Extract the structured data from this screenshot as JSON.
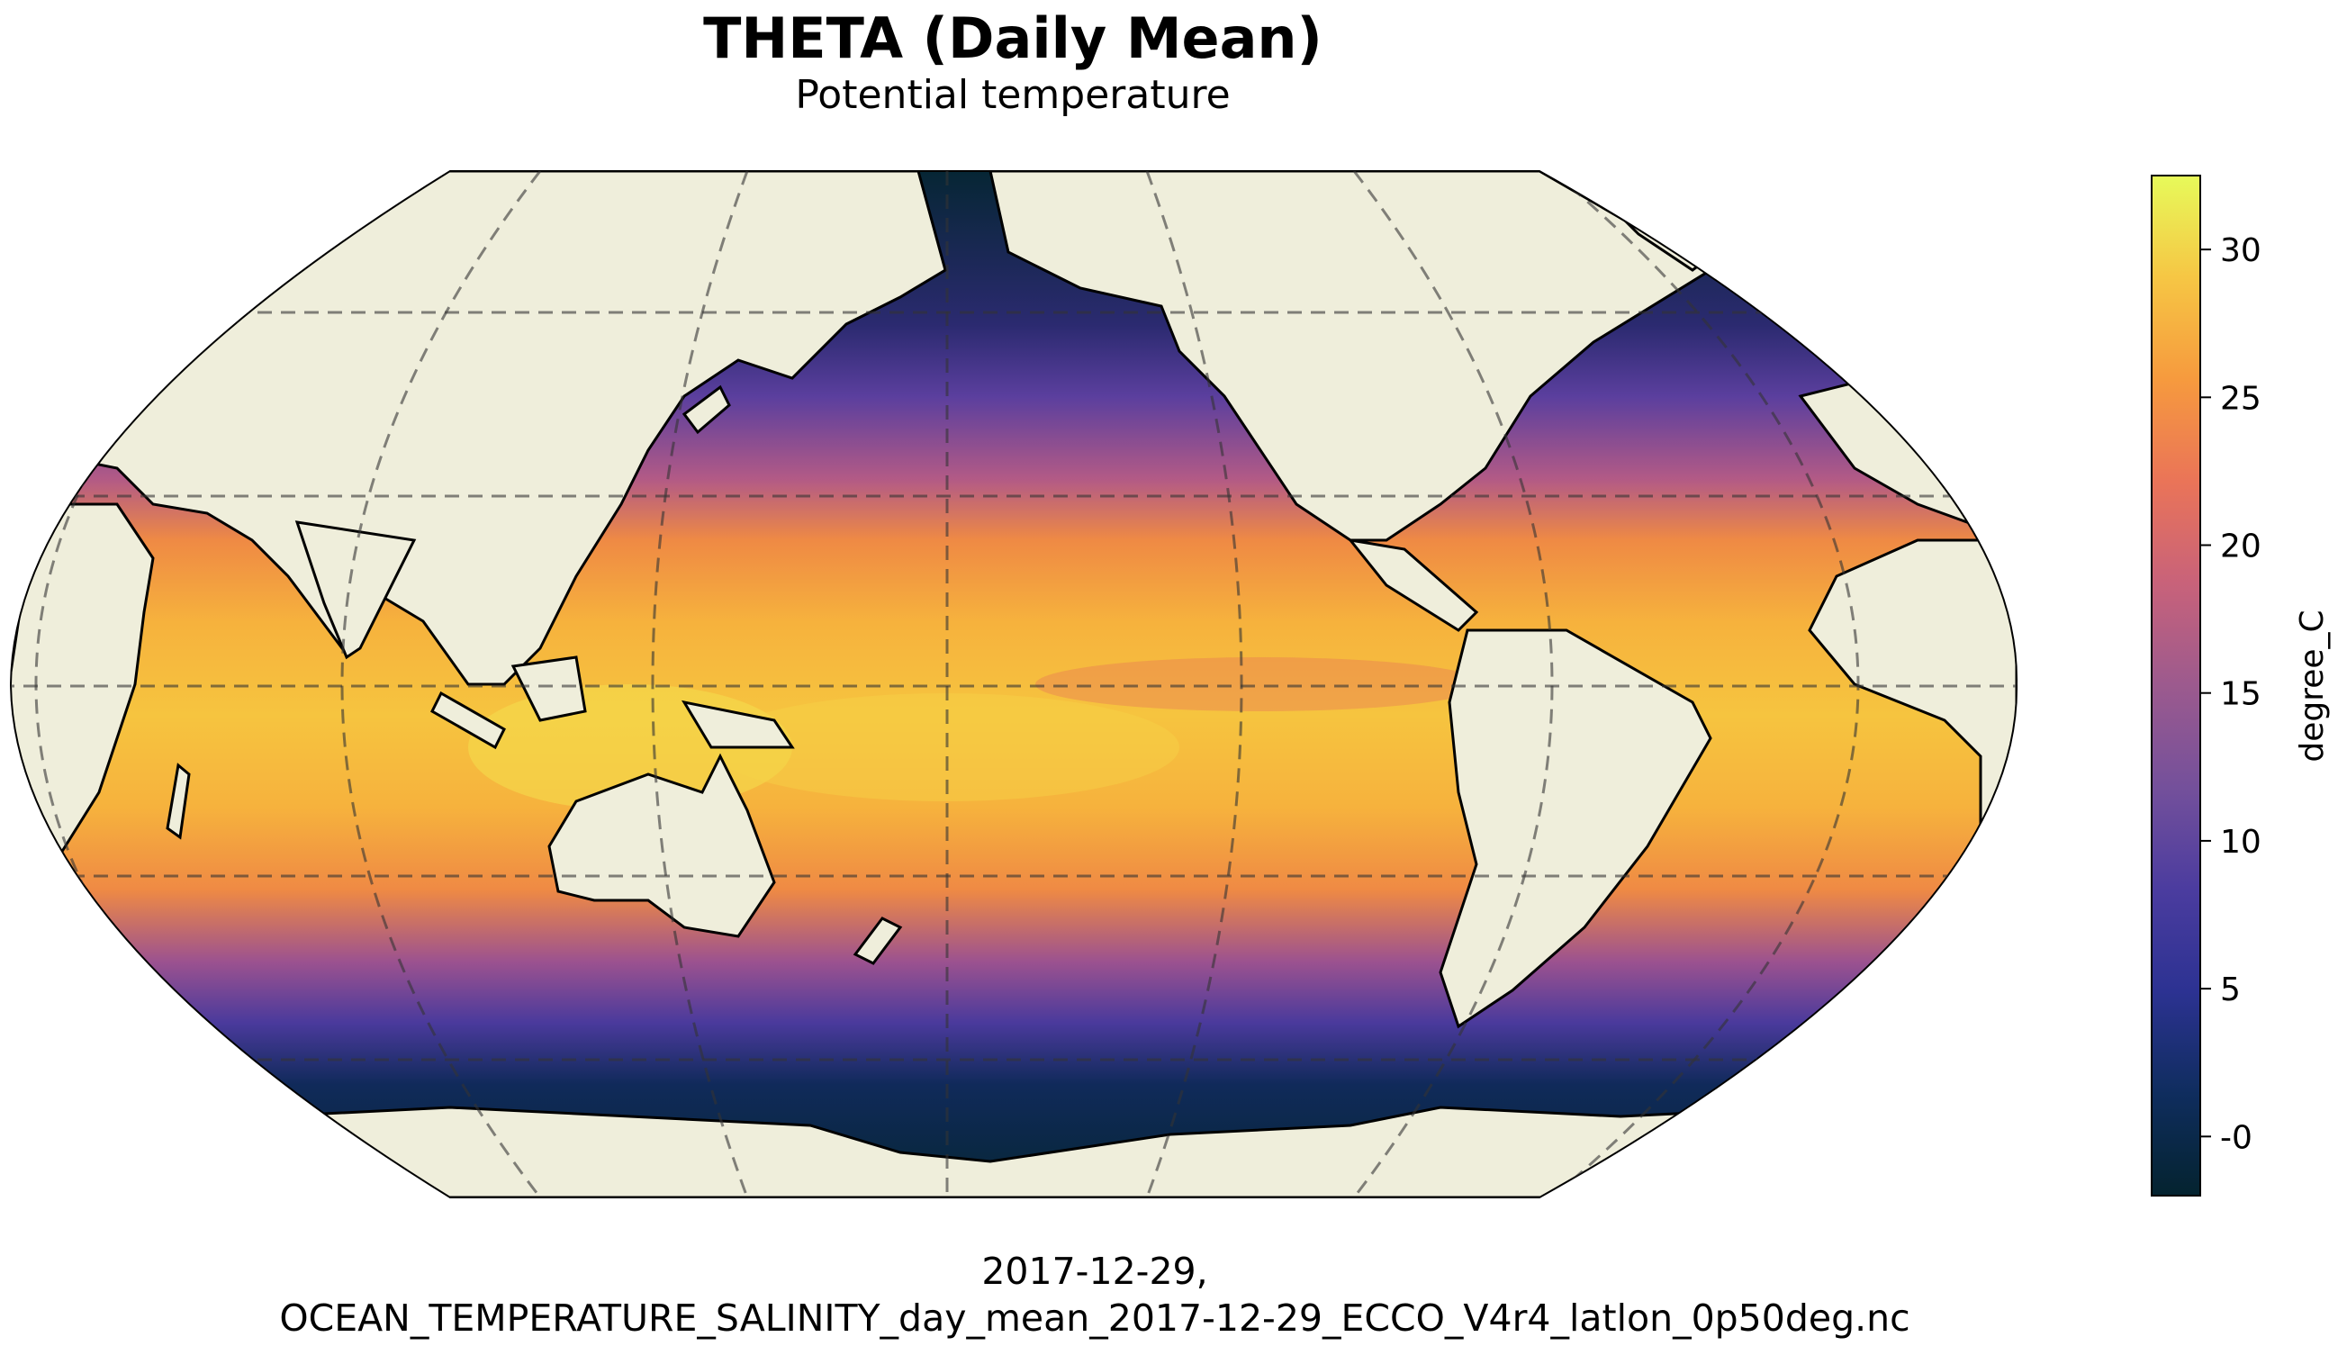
{
  "title": "THETA (Daily Mean)",
  "subtitle": "Potential temperature",
  "footer": {
    "line1": "2017-12-29,",
    "line2": "OCEAN_TEMPERATURE_SALINITY_day_mean_2017-12-29_ECCO_V4r4_latlon_0p50deg.nc"
  },
  "colors": {
    "land": "#efeedb",
    "coast": "#000000",
    "ocean_cold": "#062634",
    "ocean_mid": "#4a3a9c",
    "ocean_warm": "#f08f3f",
    "ocean_hot": "#f3e14f"
  },
  "colorbar": {
    "label": "degree_C",
    "min": -2,
    "max": 32.5,
    "ticks": [
      "-0",
      "5",
      "10",
      "15",
      "20",
      "25",
      "30"
    ],
    "tick_values": [
      0,
      5,
      10,
      15,
      20,
      25,
      30
    ],
    "colormap": "thermal"
  }
}
